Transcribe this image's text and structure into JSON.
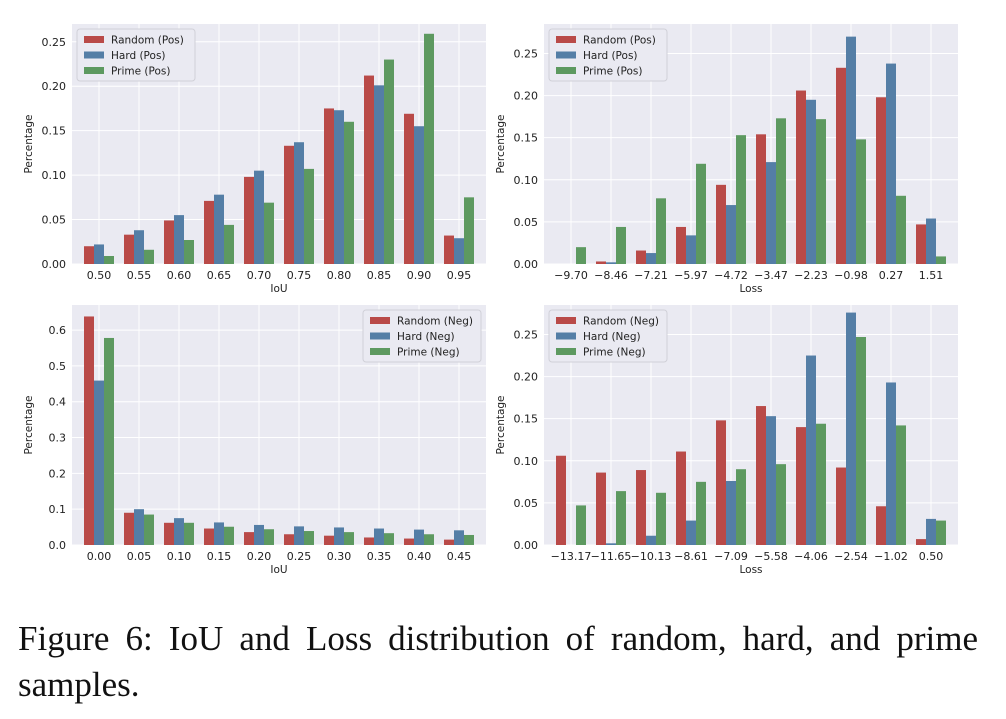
{
  "colors": {
    "random": "#b94a48",
    "hard": "#547ea6",
    "prime": "#5d9960",
    "plot_bg": "#eaeaf2",
    "grid": "#ffffff"
  },
  "caption": "Figure 6: IoU and Loss distribution of random, hard, and prime samples.",
  "chart_data": [
    {
      "type": "bar",
      "title": "",
      "xlabel": "IoU",
      "ylabel": "Percentage",
      "categories": [
        "0.50",
        "0.55",
        "0.60",
        "0.65",
        "0.70",
        "0.75",
        "0.80",
        "0.85",
        "0.90",
        "0.95"
      ],
      "ylim": [
        0,
        0.27
      ],
      "yticks": [
        "0.00",
        "0.05",
        "0.10",
        "0.15",
        "0.20",
        "0.25"
      ],
      "legend_position": "top-left",
      "grid": true,
      "series": [
        {
          "name": "Random (Pos)",
          "color": "#b94a48",
          "values": [
            0.02,
            0.033,
            0.049,
            0.071,
            0.098,
            0.133,
            0.175,
            0.212,
            0.169,
            0.032
          ]
        },
        {
          "name": "Hard (Pos)",
          "color": "#547ea6",
          "values": [
            0.022,
            0.038,
            0.055,
            0.078,
            0.105,
            0.137,
            0.173,
            0.201,
            0.155,
            0.029
          ]
        },
        {
          "name": "Prime (Pos)",
          "color": "#5d9960",
          "values": [
            0.009,
            0.016,
            0.027,
            0.044,
            0.069,
            0.107,
            0.16,
            0.23,
            0.259,
            0.075
          ]
        }
      ]
    },
    {
      "type": "bar",
      "title": "",
      "xlabel": "Loss",
      "ylabel": "Percentage",
      "categories": [
        "−9.70",
        "−8.46",
        "−7.21",
        "−5.97",
        "−4.72",
        "−3.47",
        "−2.23",
        "−0.98",
        "0.27",
        "1.51"
      ],
      "ylim": [
        0,
        0.285
      ],
      "yticks": [
        "0.00",
        "0.05",
        "0.10",
        "0.15",
        "0.20",
        "0.25"
      ],
      "legend_position": "top-left",
      "grid": true,
      "series": [
        {
          "name": "Random (Pos)",
          "color": "#b94a48",
          "values": [
            0.0,
            0.003,
            0.016,
            0.044,
            0.094,
            0.154,
            0.206,
            0.233,
            0.198,
            0.047
          ]
        },
        {
          "name": "Hard (Pos)",
          "color": "#547ea6",
          "values": [
            0.0,
            0.002,
            0.013,
            0.034,
            0.07,
            0.121,
            0.195,
            0.27,
            0.238,
            0.054
          ]
        },
        {
          "name": "Prime (Pos)",
          "color": "#5d9960",
          "values": [
            0.02,
            0.044,
            0.078,
            0.119,
            0.153,
            0.173,
            0.172,
            0.148,
            0.081,
            0.009
          ]
        }
      ]
    },
    {
      "type": "bar",
      "title": "",
      "xlabel": "IoU",
      "ylabel": "Percentage",
      "categories": [
        "0.00",
        "0.05",
        "0.10",
        "0.15",
        "0.20",
        "0.25",
        "0.30",
        "0.35",
        "0.40",
        "0.45"
      ],
      "ylim": [
        0,
        0.67
      ],
      "yticks": [
        "0.0",
        "0.1",
        "0.2",
        "0.3",
        "0.4",
        "0.5",
        "0.6"
      ],
      "legend_position": "top-right",
      "grid": true,
      "series": [
        {
          "name": "Random (Neg)",
          "color": "#b94a48",
          "values": [
            0.638,
            0.09,
            0.062,
            0.046,
            0.036,
            0.03,
            0.026,
            0.021,
            0.018,
            0.015
          ]
        },
        {
          "name": "Hard (Neg)",
          "color": "#547ea6",
          "values": [
            0.459,
            0.1,
            0.075,
            0.063,
            0.056,
            0.052,
            0.049,
            0.046,
            0.043,
            0.041
          ]
        },
        {
          "name": "Prime (Neg)",
          "color": "#5d9960",
          "values": [
            0.578,
            0.085,
            0.062,
            0.051,
            0.044,
            0.039,
            0.036,
            0.033,
            0.03,
            0.028
          ]
        }
      ]
    },
    {
      "type": "bar",
      "title": "",
      "xlabel": "Loss",
      "ylabel": "Percentage",
      "categories": [
        "−13.17",
        "−11.65",
        "−10.13",
        "−8.61",
        "−7.09",
        "−5.58",
        "−4.06",
        "−2.54",
        "−1.02",
        "0.50"
      ],
      "ylim": [
        0,
        0.285
      ],
      "yticks": [
        "0.00",
        "0.05",
        "0.10",
        "0.15",
        "0.20",
        "0.25"
      ],
      "legend_position": "top-left",
      "grid": true,
      "series": [
        {
          "name": "Random (Neg)",
          "color": "#b94a48",
          "values": [
            0.106,
            0.086,
            0.089,
            0.111,
            0.148,
            0.165,
            0.14,
            0.092,
            0.046,
            0.007
          ]
        },
        {
          "name": "Hard (Neg)",
          "color": "#547ea6",
          "values": [
            0.0,
            0.002,
            0.011,
            0.029,
            0.076,
            0.153,
            0.225,
            0.276,
            0.193,
            0.031
          ]
        },
        {
          "name": "Prime (Neg)",
          "color": "#5d9960",
          "values": [
            0.047,
            0.064,
            0.062,
            0.075,
            0.09,
            0.096,
            0.144,
            0.247,
            0.142,
            0.029
          ]
        }
      ]
    }
  ]
}
